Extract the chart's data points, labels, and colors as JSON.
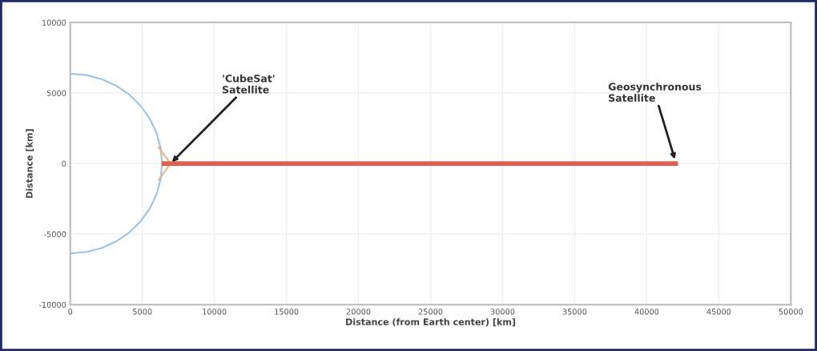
{
  "chart_data": {
    "type": "line",
    "xlabel": "Distance (from Earth center) [km]",
    "ylabel": "Distance [km]",
    "xlim": [
      0,
      50000
    ],
    "xticks": [
      0,
      5000,
      10000,
      15000,
      20000,
      25000,
      30000,
      35000,
      40000,
      45000,
      50000
    ],
    "ylim": [
      -10000,
      10000
    ],
    "yticks": [
      -10000,
      -5000,
      0,
      5000,
      10000
    ],
    "grid": true,
    "marker": "none",
    "line_style": "solid",
    "series": [
      {
        "color": "#9dc3e6",
        "x": [
          0,
          1106,
          2179,
          3186,
          4095,
          4880,
          5517,
          5987,
          6274,
          6371,
          6274,
          5987,
          5517,
          4880,
          4095,
          3186,
          2179,
          1106,
          0
        ],
        "values": [
          6371,
          6274,
          5987,
          5517,
          4880,
          4095,
          3186,
          2179,
          1106,
          0,
          -1106,
          -2179,
          -3186,
          -4095,
          -4880,
          -5517,
          -5987,
          -6274,
          -6371
        ]
      },
      {
        "color": "#f4b183",
        "x": [
          6100,
          6950,
          6100
        ],
        "values": [
          1200,
          0,
          -1200
        ]
      },
      {
        "color": "#e06050",
        "x": [
          6350,
          42164
        ],
        "values": [
          0,
          0
        ]
      }
    ],
    "annotations": [
      {
        "text": "'CubeSat'\nSatellite",
        "x": 7050,
        "y": 100
      },
      {
        "text": "Geosynchronous\nSatellite",
        "x": 41950,
        "y": 300
      }
    ]
  }
}
